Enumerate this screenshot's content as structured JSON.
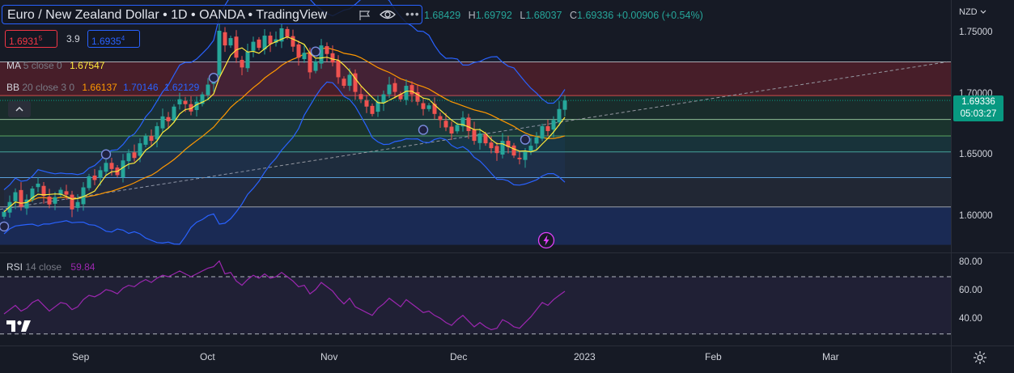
{
  "header": {
    "title": "Euro / New Zealand Dollar • 1D • OANDA • TradingView",
    "ohlc": {
      "o_value": "1.68429",
      "h_key": "H",
      "h_value": "1.69792",
      "l_key": "L",
      "l_value": "1.68037",
      "c_key": "C",
      "c_value": "1.69336",
      "change": "+0.00906 (+0.54%)"
    }
  },
  "trade": {
    "sell_price": "1.6931",
    "sell_super": "5",
    "spread": "3.9",
    "buy_price": "1.6935",
    "buy_super": "4"
  },
  "indicators": {
    "ma": {
      "name": "MA",
      "params": "5 close 0",
      "value": "1.67547"
    },
    "bb": {
      "name": "BB",
      "params": "20 close 3 0",
      "basis": "1.66137",
      "upper": "1.70146",
      "lower": "1.62129"
    },
    "rsi": {
      "name": "RSI",
      "params": "14 close",
      "value": "59.84"
    }
  },
  "price_axis": {
    "currency": "NZD",
    "labels": [
      "1.75000",
      "1.70000",
      "1.65000",
      "1.60000"
    ],
    "last_price": "1.69336",
    "countdown": "05:03:27"
  },
  "rsi_axis": {
    "labels": [
      "80.00",
      "60.00",
      "40.00"
    ]
  },
  "time_axis": {
    "labels": [
      "Sep",
      "Oct",
      "Nov",
      "Dec",
      "2023",
      "Feb",
      "Mar"
    ]
  },
  "colors": {
    "bg": "#161a25",
    "up": "#26a69a",
    "down": "#ef5350",
    "ma": "#ffeb3b",
    "bb_basis": "#ff9800",
    "bb_band": "#2962ff",
    "rsi": "#9c27b0",
    "accent": "#2962ff",
    "last_price": "#089981"
  },
  "icons": [
    "eye-icon",
    "flag-icon",
    "more-icon",
    "collapse-icon",
    "chevron-down-icon",
    "lightning-icon",
    "gear-icon",
    "tradingview-logo"
  ],
  "chart_data": [
    {
      "type": "candlestick",
      "title": "Euro / New Zealand Dollar • 1D • OANDA • TradingView",
      "ylim": [
        1.575,
        1.765
      ],
      "x_ticks": [
        "Sep",
        "Oct",
        "Nov",
        "Dec",
        "2023",
        "Feb",
        "Mar"
      ],
      "grid": false,
      "close": [
        1.602,
        1.61,
        1.618,
        1.606,
        1.612,
        1.621,
        1.625,
        1.615,
        1.608,
        1.614,
        1.62,
        1.616,
        1.604,
        1.61,
        1.622,
        1.631,
        1.628,
        1.636,
        1.642,
        1.637,
        1.632,
        1.644,
        1.65,
        1.646,
        1.658,
        1.664,
        1.66,
        1.672,
        1.68,
        1.676,
        1.688,
        1.694,
        1.69,
        1.684,
        1.692,
        1.698,
        1.706,
        1.712,
        1.75,
        1.738,
        1.744,
        1.728,
        1.72,
        1.733,
        1.741,
        1.736,
        1.746,
        1.739,
        1.743,
        1.752,
        1.745,
        1.737,
        1.728,
        1.732,
        1.716,
        1.725,
        1.738,
        1.731,
        1.724,
        1.712,
        1.705,
        1.714,
        1.7,
        1.694,
        1.688,
        1.682,
        1.692,
        1.698,
        1.706,
        1.7,
        1.694,
        1.705,
        1.698,
        1.692,
        1.686,
        1.689,
        1.682,
        1.677,
        1.671,
        1.666,
        1.673,
        1.679,
        1.668,
        1.66,
        1.666,
        1.658,
        1.654,
        1.65,
        1.66,
        1.655,
        1.648,
        1.645,
        1.651,
        1.656,
        1.663,
        1.672,
        1.668,
        1.677,
        1.686,
        1.693
      ]
    },
    {
      "type": "line",
      "title": "RSI 14 close",
      "ylim": [
        20,
        85
      ],
      "levels": [
        70,
        30
      ],
      "values": [
        44,
        47,
        50,
        46,
        48,
        52,
        54,
        50,
        46,
        49,
        52,
        51,
        47,
        49,
        54,
        57,
        56,
        58,
        61,
        60,
        58,
        62,
        64,
        63,
        66,
        68,
        66,
        69,
        71,
        70,
        72,
        74,
        72,
        70,
        72,
        74,
        76,
        77,
        81,
        72,
        73,
        67,
        64,
        68,
        71,
        69,
        72,
        69,
        70,
        73,
        70,
        67,
        63,
        64,
        58,
        61,
        66,
        63,
        60,
        55,
        51,
        55,
        49,
        47,
        45,
        43,
        48,
        51,
        55,
        52,
        49,
        54,
        51,
        48,
        45,
        46,
        43,
        41,
        38,
        36,
        40,
        43,
        39,
        35,
        38,
        35,
        33,
        34,
        40,
        38,
        35,
        34,
        38,
        42,
        47,
        52,
        50,
        54,
        57,
        59.84
      ]
    }
  ]
}
